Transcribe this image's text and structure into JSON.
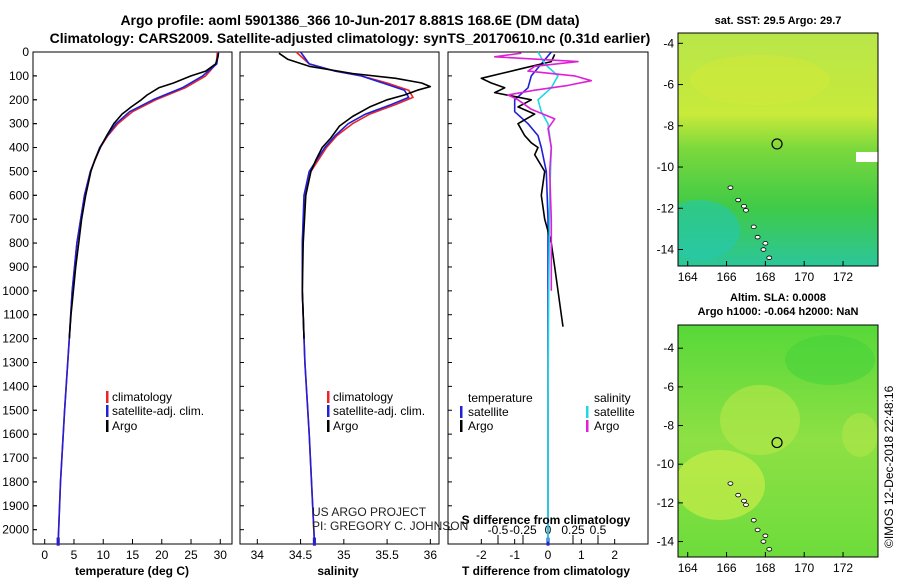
{
  "title": {
    "line1": "Argo profile: aoml 5901386_366 10-Jun-2017 8.881S 168.6E (DM data)",
    "line2": "Climatology: CARS2009. Satellite-adjusted climatology: synTS_20170610.nc (0.31d earlier)"
  },
  "colors": {
    "climatology": "#e8262a",
    "satellite": "#2020d8",
    "argo": "#000000",
    "satellite_salinity": "#1fd8e0",
    "argo_salinity": "#e020d8"
  },
  "chart_data": [
    {
      "type": "line",
      "panel": "temperature",
      "xlabel": "temperature (deg C)",
      "ylabel": "",
      "xlim": [
        -2,
        32
      ],
      "ylim": [
        2060,
        0
      ],
      "xticks": [
        "0",
        "5",
        "10",
        "15",
        "20",
        "25",
        "30"
      ],
      "xtick_values": [
        0,
        5,
        10,
        15,
        20,
        25,
        30
      ],
      "yticks": [
        "0",
        "100",
        "200",
        "300",
        "400",
        "500",
        "600",
        "700",
        "800",
        "900",
        "1000",
        "1100",
        "1200",
        "1300",
        "1400",
        "1500",
        "1600",
        "1700",
        "1800",
        "1900",
        "2000"
      ],
      "ytick_values": [
        0,
        100,
        200,
        300,
        400,
        500,
        600,
        700,
        800,
        900,
        1000,
        1100,
        1200,
        1300,
        1400,
        1500,
        1600,
        1700,
        1800,
        1900,
        2000
      ],
      "legend": [
        "climatology",
        "satellite-adj. clim.",
        "Argo"
      ],
      "series": [
        {
          "name": "climatology",
          "key": "climatology",
          "depth": [
            0,
            50,
            100,
            150,
            200,
            250,
            300,
            350,
            400,
            500,
            600,
            800,
            1000,
            1200,
            1500,
            1800,
            2050
          ],
          "values": [
            29.5,
            29.3,
            27.5,
            24,
            19,
            15,
            12.5,
            10.8,
            9.5,
            7.8,
            6.8,
            5.5,
            4.7,
            4.2,
            3.4,
            2.7,
            2.3
          ]
        },
        {
          "name": "satellite-adj. clim.",
          "key": "satellite",
          "depth": [
            0,
            50,
            100,
            150,
            200,
            250,
            300,
            350,
            400,
            500,
            600,
            800,
            1000,
            1200,
            1500,
            1800,
            2050
          ],
          "values": [
            29.7,
            29.4,
            27.0,
            23.5,
            18.5,
            14.5,
            12.2,
            10.7,
            9.4,
            7.8,
            6.8,
            5.5,
            4.7,
            4.2,
            3.4,
            2.7,
            2.3
          ]
        },
        {
          "name": "Argo",
          "key": "argo",
          "depth": [
            5,
            20,
            50,
            80,
            100,
            130,
            150,
            180,
            200,
            230,
            260,
            300,
            350,
            400,
            450,
            500,
            600,
            700,
            800,
            900,
            1000,
            1100,
            1200
          ],
          "values": [
            29.7,
            29.6,
            29.2,
            27.5,
            25.0,
            22.0,
            19.5,
            17.5,
            16.5,
            14.8,
            13.2,
            11.8,
            10.6,
            9.5,
            8.6,
            7.9,
            7.0,
            6.3,
            5.8,
            5.3,
            4.9,
            4.5,
            4.2
          ]
        }
      ]
    },
    {
      "type": "line",
      "panel": "salinity",
      "xlabel": "salinity",
      "xlim": [
        33.8,
        36.1
      ],
      "ylim": [
        2060,
        0
      ],
      "xticks": [
        "34",
        "34.5",
        "35",
        "35.5",
        "36"
      ],
      "xtick_values": [
        34,
        34.5,
        35,
        35.5,
        36
      ],
      "legend": [
        "climatology",
        "satellite-adj. clim.",
        "Argo"
      ],
      "annotations": [
        "US ARGO PROJECT",
        "PI: GREGORY C. JOHNSON"
      ],
      "series": [
        {
          "name": "climatology",
          "key": "climatology",
          "depth": [
            0,
            50,
            80,
            100,
            130,
            160,
            190,
            220,
            260,
            300,
            350,
            400,
            500,
            600,
            800,
            1000,
            1300,
            1600,
            2050
          ],
          "values": [
            34.45,
            34.6,
            34.9,
            35.2,
            35.5,
            35.75,
            35.8,
            35.6,
            35.3,
            35.1,
            34.92,
            34.8,
            34.62,
            34.55,
            34.52,
            34.52,
            34.55,
            34.6,
            34.66
          ]
        },
        {
          "name": "satellite-adj. clim.",
          "key": "satellite",
          "depth": [
            0,
            50,
            80,
            100,
            130,
            160,
            190,
            220,
            260,
            300,
            350,
            400,
            500,
            600,
            800,
            1000,
            1300,
            1600,
            2050
          ],
          "values": [
            34.5,
            34.6,
            34.9,
            35.2,
            35.45,
            35.7,
            35.75,
            35.55,
            35.25,
            35.05,
            34.9,
            34.78,
            34.6,
            34.54,
            34.52,
            34.52,
            34.55,
            34.6,
            34.66
          ]
        },
        {
          "name": "Argo",
          "key": "argo",
          "depth": [
            5,
            30,
            60,
            90,
            110,
            130,
            145,
            160,
            180,
            200,
            230,
            270,
            310,
            360,
            400,
            450,
            500,
            600,
            800,
            1000,
            1100,
            1200
          ],
          "values": [
            34.25,
            34.35,
            34.6,
            35.1,
            35.6,
            35.9,
            36.0,
            35.85,
            35.7,
            35.5,
            35.3,
            35.1,
            34.95,
            34.85,
            34.75,
            34.68,
            34.62,
            34.56,
            34.53,
            34.52,
            34.53,
            34.54
          ]
        }
      ]
    },
    {
      "type": "line",
      "panel": "difference",
      "xlabel": "T difference from climatology",
      "xlabel_top": "S difference from climatology",
      "xlim": [
        -3,
        3
      ],
      "ylim": [
        2060,
        0
      ],
      "xticks": [
        "-2",
        "-1",
        "0",
        "1",
        "2"
      ],
      "xtick_values": [
        -2,
        -1,
        0,
        1,
        2
      ],
      "sticks": [
        "-0.5",
        "-0.25",
        "0",
        "0.25",
        "0.5"
      ],
      "stick_values": [
        -1.5,
        -0.75,
        0,
        0.75,
        1.5
      ],
      "legend_temperature_title": "temperature",
      "legend_salinity_title": "salinity",
      "legend_temperature": [
        "satellite",
        "Argo"
      ],
      "legend_salinity": [
        "satellite",
        "Argo"
      ],
      "series": [
        {
          "name": "temperature satellite",
          "key": "satellite",
          "depth": [
            0,
            100,
            150,
            200,
            250,
            300,
            350,
            400,
            500,
            700,
            1000,
            1500,
            2050
          ],
          "values": [
            0.1,
            -0.5,
            -0.6,
            -1.0,
            -1.0,
            -0.6,
            -0.3,
            -0.2,
            -0.05,
            0,
            0,
            0,
            0
          ]
        },
        {
          "name": "temperature Argo",
          "key": "argo",
          "depth": [
            10,
            40,
            70,
            90,
            110,
            130,
            150,
            170,
            200,
            230,
            260,
            300,
            350,
            380,
            400,
            430,
            500,
            600,
            700,
            800,
            900,
            1000,
            1100,
            1150
          ],
          "values": [
            0.2,
            0.1,
            -0.8,
            -1.4,
            -2.0,
            -1.7,
            -1.3,
            -1.6,
            -0.5,
            -0.9,
            -0.4,
            -0.9,
            -0.7,
            -0.5,
            -0.3,
            -0.4,
            -0.1,
            -0.2,
            -0.1,
            0.1,
            0.2,
            0.3,
            0.4,
            0.45
          ]
        },
        {
          "name": "salinity satellite",
          "key": "satellite_salinity",
          "depth": [
            0,
            50,
            100,
            150,
            200,
            250,
            300,
            400,
            600,
            1000,
            1500,
            2050
          ],
          "values": [
            -0.3,
            -0.1,
            0.3,
            0.1,
            -0.3,
            -0.2,
            0.0,
            0.1,
            0.05,
            0.02,
            0.0,
            0.0
          ]
        },
        {
          "name": "salinity Argo",
          "key": "argo_salinity",
          "depth": [
            5,
            20,
            40,
            60,
            80,
            100,
            120,
            140,
            160,
            180,
            200,
            240,
            280,
            320,
            400,
            500,
            700,
            1000
          ],
          "values": [
            -0.8,
            -1.6,
            0.9,
            -0.4,
            -0.6,
            0.8,
            1.3,
            0.6,
            -0.4,
            -1.2,
            -0.9,
            -0.5,
            0.2,
            0.0,
            0.1,
            0.05,
            0.1,
            0.1
          ]
        }
      ]
    },
    {
      "type": "heatmap",
      "panel": "sst-map",
      "title": "sat. SST: 29.5 Argo: 29.7",
      "xticks": [
        "164",
        "166",
        "168",
        "170",
        "172"
      ],
      "xtick_values": [
        164,
        166,
        168,
        170,
        172
      ],
      "yticks": [
        "-4",
        "-6",
        "-8",
        "-10",
        "-12",
        "-14"
      ],
      "ytick_values": [
        -4,
        -6,
        -8,
        -10,
        -12,
        -14
      ],
      "xlim": [
        163.5,
        173.8
      ],
      "ylim": [
        -14.8,
        -3.5
      ],
      "argo_position": {
        "lon": 168.6,
        "lat": -8.881
      }
    },
    {
      "type": "heatmap",
      "panel": "sla-map",
      "title_line1": "Altim. SLA: 0.0008",
      "title_line2": "Argo h1000: -0.064 h2000: NaN",
      "xticks": [
        "164",
        "166",
        "168",
        "170",
        "172"
      ],
      "xtick_values": [
        164,
        166,
        168,
        170,
        172
      ],
      "yticks": [
        "-4",
        "-6",
        "-8",
        "-10",
        "-12",
        "-14"
      ],
      "ytick_values": [
        -4,
        -6,
        -8,
        -10,
        -12,
        -14
      ],
      "xlim": [
        163.5,
        173.8
      ],
      "ylim": [
        -14.8,
        -2.8
      ],
      "argo_position": {
        "lon": 168.6,
        "lat": -8.881
      }
    }
  ],
  "credit": "©IMOS 12-Dec-2018 22:48:16"
}
